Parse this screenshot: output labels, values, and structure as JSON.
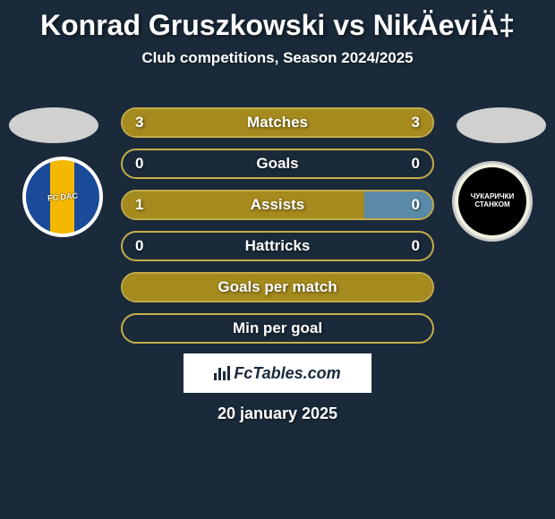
{
  "title": "Konrad Gruszkowski vs NikÄeviÄ‡",
  "subtitle": "Club competitions, Season 2024/2025",
  "date": "20 january 2025",
  "footer_brand": "FcTables.com",
  "colors": {
    "background": "#1a2a3a",
    "accent": "#a58a1e",
    "border": "#c4ad4a",
    "fill_highlight": "#5a8aa8",
    "text": "#ffffff"
  },
  "player_left": {
    "head_color": "#d0d0d0",
    "club_label": "FC DAC"
  },
  "player_right": {
    "head_color": "#d0d0d0",
    "club_label": "ЧУКАРИЧКИ\nСТАНКОМ"
  },
  "stats": [
    {
      "label": "Matches",
      "left_value": "3",
      "right_value": "3",
      "left_fill_pct": 50,
      "right_fill_pct": 50,
      "left_fill_color": "#a58a1e",
      "right_fill_color": "#a58a1e",
      "border_color": "#c4ad4a"
    },
    {
      "label": "Goals",
      "left_value": "0",
      "right_value": "0",
      "left_fill_pct": 0,
      "right_fill_pct": 0,
      "left_fill_color": "#a58a1e",
      "right_fill_color": "#a58a1e",
      "border_color": "#c4ad4a"
    },
    {
      "label": "Assists",
      "left_value": "1",
      "right_value": "0",
      "left_fill_pct": 78,
      "right_fill_pct": 22,
      "left_fill_color": "#a58a1e",
      "right_fill_color": "#5a8aa8",
      "border_color": "#c4ad4a"
    },
    {
      "label": "Hattricks",
      "left_value": "0",
      "right_value": "0",
      "left_fill_pct": 0,
      "right_fill_pct": 0,
      "left_fill_color": "#a58a1e",
      "right_fill_color": "#a58a1e",
      "border_color": "#c4ad4a"
    },
    {
      "label": "Goals per match",
      "left_value": "",
      "right_value": "",
      "left_fill_pct": 50,
      "right_fill_pct": 50,
      "left_fill_color": "#a58a1e",
      "right_fill_color": "#a58a1e",
      "border_color": "#c4ad4a"
    },
    {
      "label": "Min per goal",
      "left_value": "",
      "right_value": "",
      "left_fill_pct": 0,
      "right_fill_pct": 0,
      "left_fill_color": "#a58a1e",
      "right_fill_color": "#a58a1e",
      "border_color": "#c4ad4a"
    }
  ]
}
